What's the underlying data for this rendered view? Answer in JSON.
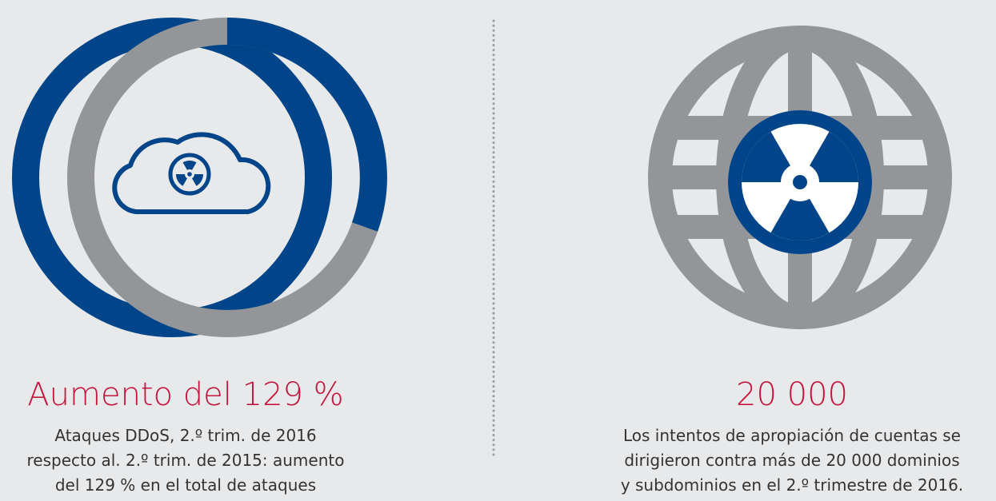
{
  "panels": [
    {
      "headline": "Aumento del 129 %",
      "description": [
        "Ataques DDoS, 2.º trim. de 2016",
        "respecto al. 2.º trim. de 2015: aumento",
        "del 129 % en el total de ataques"
      ]
    },
    {
      "headline": "20 000",
      "description": [
        "Los intentos de apropiación de cuentas se",
        "dirigieron contra más de 20 000 dominios",
        "y subdominios en el 2.º trimestre de 2016."
      ]
    }
  ]
}
